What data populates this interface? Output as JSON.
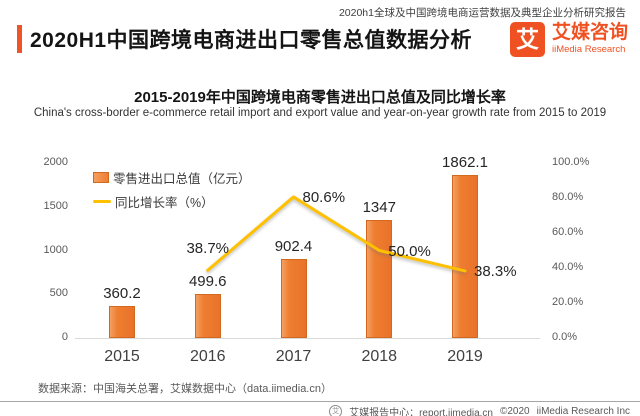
{
  "header": {
    "report_series": "2020h1全球及中国跨境电商运营数据及典型企业分析研究报告",
    "title": "2020H1中国跨境电商进出口零售总值数据分析",
    "logo": {
      "glyph": "艾",
      "name_cn": "艾媒咨询",
      "name_en": "iiMedia Research",
      "brand_color": "#f05123"
    }
  },
  "chart": {
    "title": "2015-2019年中国跨境电商零售进出口总值及同比增长率",
    "subtitle": "China's cross-border e-commerce retail import and export value and year-on-year growth rate from 2015 to 2019",
    "source": "数据来源：中国海关总署，艾媒数据中心（data.iimedia.cn）"
  },
  "chart_data": {
    "type": "bar",
    "subtype": "combo bar+line, dual axis",
    "categories": [
      "2015",
      "2016",
      "2017",
      "2018",
      "2019"
    ],
    "series": [
      {
        "name": "零售进出口总值（亿元）",
        "type": "bar",
        "axis": "left",
        "values": [
          360.2,
          499.6,
          902.4,
          1347,
          1862.1
        ],
        "labels": [
          "360.2",
          "499.6",
          "902.4",
          "1347",
          "1862.1"
        ],
        "color": "#ed7d31"
      },
      {
        "name": "同比增长率（%）",
        "type": "line",
        "axis": "right",
        "x": [
          "2016",
          "2017",
          "2018",
          "2019"
        ],
        "values": [
          38.7,
          80.6,
          50.0,
          38.3
        ],
        "labels": [
          "38.7%",
          "80.6%",
          "50.0%",
          "38.3%"
        ],
        "color": "#ffc000"
      }
    ],
    "left_axis": {
      "ticks": [
        "2000",
        "1500",
        "1000",
        "500",
        "0"
      ],
      "min": 0,
      "max": 2000
    },
    "right_axis": {
      "ticks": [
        "100.0%",
        "80.0%",
        "60.0%",
        "40.0%",
        "20.0%",
        "0.0%"
      ],
      "min": 0,
      "max": 100
    },
    "legend_position": "top-left inside plot",
    "grid": false
  },
  "footer": {
    "center_label": "艾媒报告中心：report.iimedia.cn",
    "copyright": "©2020",
    "company": "iiMedia Research Inc"
  }
}
